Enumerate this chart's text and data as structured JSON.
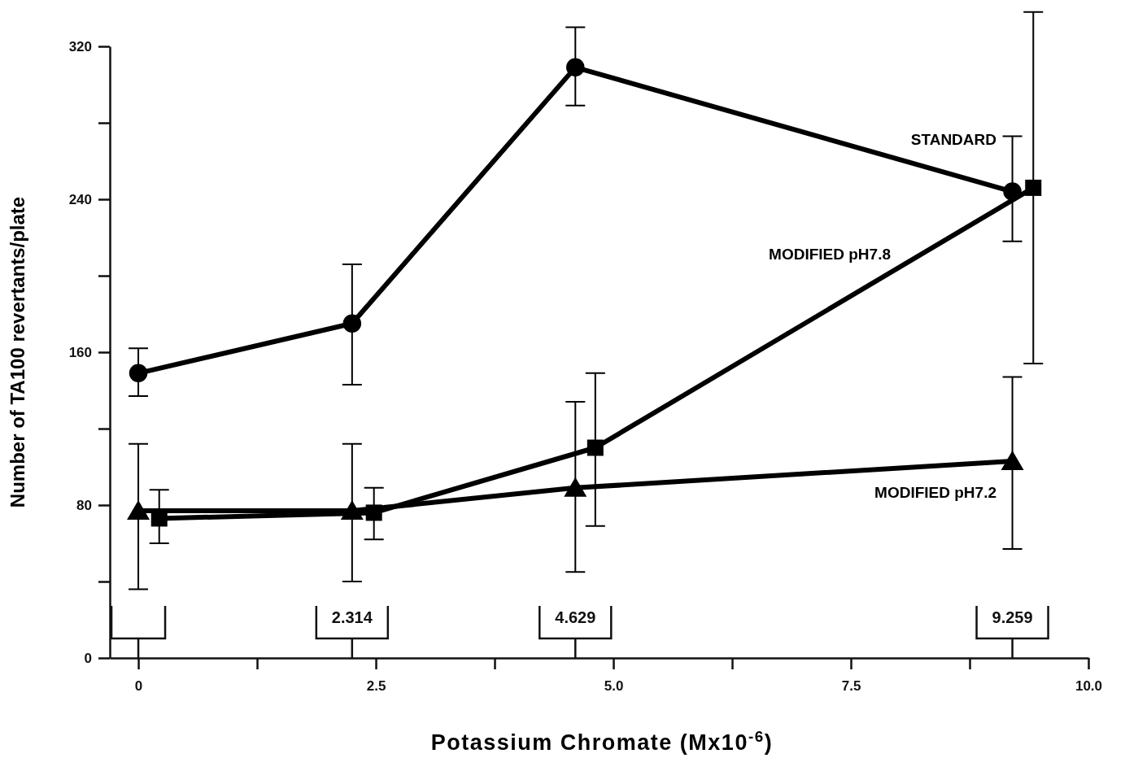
{
  "chart_data": {
    "type": "line",
    "xlabel": "Potassium Chromate (Mx10$^{-6}$)",
    "ylabel": "Number of TA100 revertants/plate",
    "xlim": [
      -0.3,
      10
    ],
    "xticks": [
      0,
      {
        "value": 1.25,
        "label": null
      },
      2.5,
      {
        "value": 3.75,
        "label": null
      },
      {
        "value": 5,
        "label": "5.0"
      },
      {
        "value": 6.25,
        "label": null
      },
      7.5,
      {
        "value": 8.75,
        "label": null
      },
      {
        "value": 10,
        "label": "10.0"
      }
    ],
    "ylim": [
      0,
      320
    ],
    "yticks": [
      0,
      {
        "value": 40,
        "label": null
      },
      80,
      {
        "value": 120,
        "label": null
      },
      160,
      {
        "value": 200,
        "label": null
      },
      240,
      {
        "value": 280,
        "label": null
      },
      320
    ],
    "grid": false,
    "legend": false,
    "line_style": "solid",
    "series": [
      {
        "name": "STANDARD",
        "color": "#000000",
        "marker": "circle",
        "x": [
          0,
          2.25,
          4.6,
          9.2
        ],
        "values": [
          149,
          175,
          309,
          244
        ],
        "errors": [
          [
            137,
            162
          ],
          [
            143,
            206
          ],
          [
            289,
            330
          ],
          [
            218,
            273
          ]
        ]
      },
      {
        "name": "MODIFIED pH7.8",
        "color": "#000000",
        "marker": "square",
        "x": [
          0.22,
          2.48,
          4.81,
          9.42
        ],
        "values": [
          73,
          76,
          110,
          246
        ],
        "errors": [
          [
            60,
            88
          ],
          [
            62,
            89
          ],
          [
            69,
            149
          ],
          [
            154,
            338
          ]
        ]
      },
      {
        "name": "MODIFIED pH7.2",
        "color": "#000000",
        "marker": "triangle",
        "x": [
          0,
          2.25,
          4.6,
          9.2
        ],
        "values": [
          77,
          77,
          89,
          103
        ],
        "errors": [
          [
            36,
            112
          ],
          [
            40,
            112
          ],
          [
            45,
            134
          ],
          [
            57,
            147
          ]
        ]
      }
    ],
    "annotations": [
      "2.314",
      "4.629",
      "9.259"
    ]
  }
}
